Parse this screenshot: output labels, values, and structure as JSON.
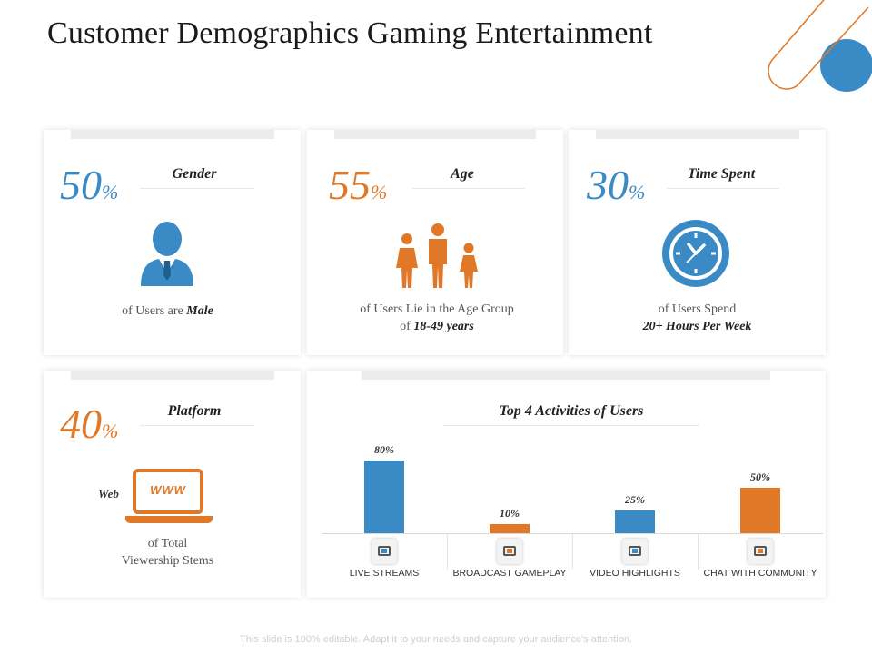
{
  "title": "Customer Demographics Gaming Entertainment",
  "colors": {
    "blue": "#3a8ac6",
    "orange": "#e07828"
  },
  "cards": {
    "gender": {
      "value": "50",
      "unit": "%",
      "heading": "Gender",
      "desc_prefix": "of Users are",
      "desc_bold": "Male"
    },
    "age": {
      "value": "55",
      "unit": "%",
      "heading": "Age",
      "desc_line1": "of Users Lie in the Age Group",
      "desc_line2_prefix": "of",
      "desc_line2_bold": "18-49 years"
    },
    "time": {
      "value": "30",
      "unit": "%",
      "heading": "Time Spent",
      "desc_line1": "of Users Spend",
      "desc_line2_bold": "20+ Hours Per Week"
    },
    "platform": {
      "value": "40",
      "unit": "%",
      "heading": "Platform",
      "web_label": "Web",
      "www_text": "WWW",
      "desc_line1": "of Total",
      "desc_line2": "Viewership Stems"
    }
  },
  "chart_data": {
    "type": "bar",
    "title": "Top 4 Activities of Users",
    "categories": [
      "LIVE STREAMS",
      "BROADCAST GAMEPLAY",
      "VIDEO HIGHLIGHTS",
      "CHAT WITH COMMUNITY"
    ],
    "values": [
      80,
      10,
      25,
      50
    ],
    "value_labels": [
      "80%",
      "10%",
      "25%",
      "50%"
    ],
    "bar_colors": [
      "#3a8ac6",
      "#e07828",
      "#3a8ac6",
      "#e07828"
    ],
    "icons": [
      "clapperboard-icon",
      "satellite-dish-icon",
      "video-camera-icon",
      "chat-users-icon"
    ],
    "ylim": [
      0,
      100
    ]
  },
  "footer": "This slide is 100% editable. Adapt it to your needs and capture your audience's attention."
}
